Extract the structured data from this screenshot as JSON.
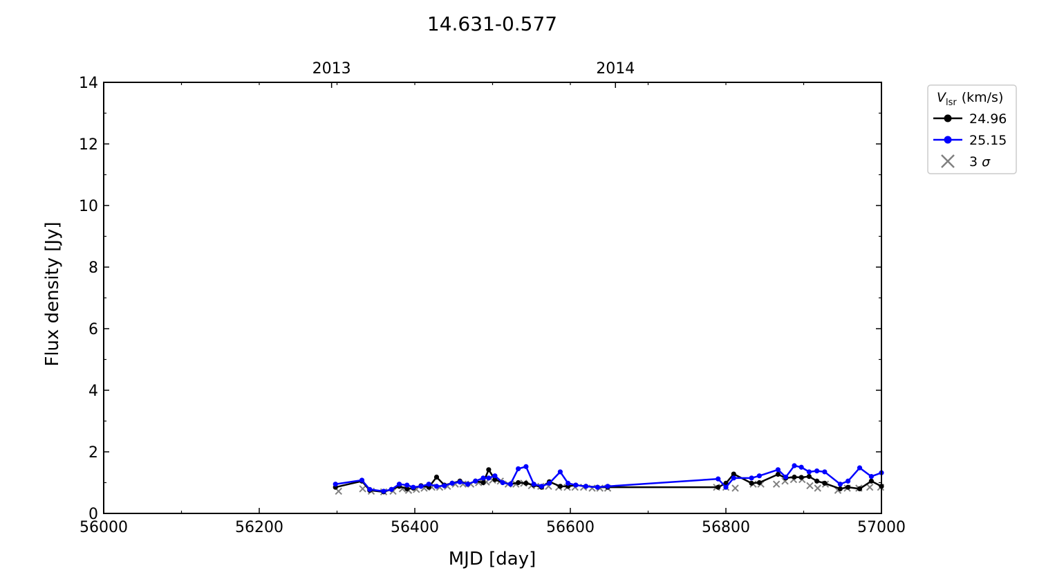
{
  "chart_data": {
    "type": "line",
    "title": "14.631-0.577",
    "xlabel": "MJD [day]",
    "ylabel": "Flux density [Jy]",
    "xlim": [
      56000,
      57000
    ],
    "ylim": [
      0,
      14
    ],
    "xticks": [
      56000,
      56200,
      56400,
      56600,
      56800,
      57000
    ],
    "yticks": [
      0,
      2,
      4,
      6,
      8,
      10,
      12,
      14
    ],
    "top_axis_ticks": [
      {
        "label": "2013",
        "mjd": 56293
      },
      {
        "label": "2014",
        "mjd": 56658
      }
    ],
    "grid": false,
    "legend": {
      "placement": "outside-top-right",
      "title_main": "V",
      "title_sub": "lsr",
      "title_unit": "(km/s)",
      "entries": [
        {
          "label": "24.96",
          "color": "#000000",
          "kind": "line-marker"
        },
        {
          "label": "25.15",
          "color": "#0000ff",
          "kind": "line-marker"
        },
        {
          "label_main": "3",
          "label_sigma": "σ",
          "color": "#808080",
          "kind": "cross"
        }
      ]
    },
    "series": [
      {
        "name": "24.96",
        "color": "#000000",
        "x": [
          56298,
          56332,
          56342,
          56360,
          56370,
          56380,
          56390,
          56398,
          56408,
          56418,
          56428,
          56438,
          56448,
          56458,
          56468,
          56478,
          56488,
          56495,
          56503,
          56513,
          56523,
          56533,
          56543,
          56553,
          56563,
          56573,
          56587,
          56597,
          56607,
          56620,
          56635,
          56648,
          56790,
          56800,
          56810,
          56833,
          56843,
          56867,
          56877,
          56888,
          56897,
          56907,
          56917,
          56927,
          56947,
          56957,
          56972,
          56987,
          57000
        ],
        "y": [
          0.85,
          1.05,
          0.75,
          0.7,
          0.78,
          0.88,
          0.8,
          0.82,
          0.9,
          0.85,
          1.18,
          0.92,
          0.98,
          1.05,
          0.95,
          1.05,
          1.0,
          1.42,
          1.1,
          1.0,
          0.95,
          1.0,
          0.98,
          0.92,
          0.85,
          1.03,
          0.88,
          0.88,
          0.92,
          0.88,
          0.85,
          0.85,
          0.85,
          0.98,
          1.28,
          0.98,
          1.0,
          1.27,
          1.15,
          1.18,
          1.17,
          1.2,
          1.05,
          0.98,
          0.8,
          0.85,
          0.8,
          1.05,
          0.88
        ]
      },
      {
        "name": "25.15",
        "color": "#0000ff",
        "x": [
          56298,
          56332,
          56342,
          56360,
          56370,
          56380,
          56390,
          56398,
          56408,
          56418,
          56428,
          56438,
          56448,
          56458,
          56468,
          56478,
          56488,
          56495,
          56503,
          56513,
          56523,
          56533,
          56543,
          56553,
          56563,
          56573,
          56587,
          56597,
          56607,
          56620,
          56635,
          56648,
          56790,
          56800,
          56810,
          56833,
          56843,
          56867,
          56877,
          56888,
          56897,
          56907,
          56917,
          56927,
          56947,
          56957,
          56972,
          56987,
          57000
        ],
        "y": [
          0.95,
          1.08,
          0.78,
          0.72,
          0.78,
          0.95,
          0.92,
          0.85,
          0.88,
          0.95,
          0.88,
          0.9,
          0.98,
          1.02,
          0.95,
          1.05,
          1.15,
          1.15,
          1.22,
          1.0,
          0.95,
          1.45,
          1.52,
          0.95,
          0.88,
          0.98,
          1.35,
          0.98,
          0.92,
          0.88,
          0.85,
          0.88,
          1.12,
          0.85,
          1.15,
          1.15,
          1.22,
          1.42,
          1.18,
          1.55,
          1.5,
          1.35,
          1.38,
          1.35,
          0.95,
          1.05,
          1.48,
          1.2,
          1.32
        ]
      },
      {
        "name": "3 σ",
        "color": "#808080",
        "x": [
          56302,
          56333,
          56344,
          56360,
          56372,
          56384,
          56392,
          56402,
          56412,
          56422,
          56432,
          56442,
          56452,
          56462,
          56472,
          56482,
          56492,
          56500,
          56510,
          56520,
          56530,
          56540,
          56550,
          56562,
          56572,
          56585,
          56596,
          56606,
          56617,
          56628,
          56638,
          56648,
          56788,
          56800,
          56812,
          56835,
          56845,
          56865,
          56876,
          56887,
          56898,
          56908,
          56918,
          56928,
          56944,
          56956,
          56971,
          56985,
          56999
        ],
        "y": [
          0.72,
          0.8,
          0.72,
          0.7,
          0.72,
          0.8,
          0.75,
          0.78,
          0.82,
          0.85,
          0.85,
          0.88,
          0.95,
          0.95,
          0.95,
          1.0,
          1.02,
          1.08,
          1.05,
          0.95,
          0.95,
          0.98,
          0.9,
          0.88,
          0.88,
          0.85,
          0.85,
          0.85,
          0.85,
          0.82,
          0.82,
          0.82,
          0.85,
          0.85,
          0.82,
          0.95,
          0.95,
          0.95,
          1.05,
          1.1,
          1.1,
          0.9,
          0.82,
          0.95,
          0.75,
          0.82,
          0.82,
          0.85,
          0.85
        ]
      }
    ]
  }
}
